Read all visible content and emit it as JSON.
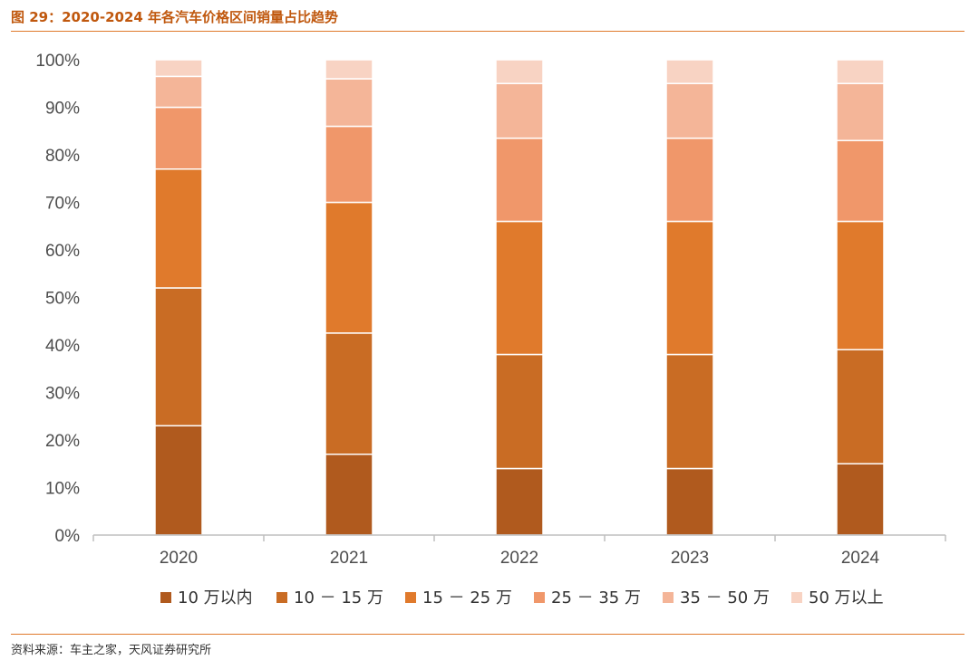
{
  "figure_title": "图 29：2020-2024 年各汽车价格区间销量占比趋势",
  "source": "资料来源：车主之家，天风证券研究所",
  "chart_data": {
    "type": "bar",
    "stacked": true,
    "categories": [
      "2020",
      "2021",
      "2022",
      "2023",
      "2024"
    ],
    "y_ticks": [
      "0%",
      "10%",
      "20%",
      "30%",
      "40%",
      "50%",
      "60%",
      "70%",
      "80%",
      "90%",
      "100%"
    ],
    "ylim": [
      0,
      100
    ],
    "grid": false,
    "legend_position": "bottom",
    "series": [
      {
        "name": "10 万以内",
        "color": "#b05a1e",
        "values": [
          23,
          17,
          14,
          14,
          15
        ]
      },
      {
        "name": "10 － 15 万",
        "color": "#c96c24",
        "values": [
          29,
          25.5,
          24,
          24,
          24
        ]
      },
      {
        "name": "15 － 25 万",
        "color": "#e07a2c",
        "values": [
          25,
          27.5,
          28,
          28,
          27
        ]
      },
      {
        "name": "25 － 35 万",
        "color": "#f0976a",
        "values": [
          13,
          16,
          17.5,
          17.5,
          17
        ]
      },
      {
        "name": "35 － 50 万",
        "color": "#f4b598",
        "values": [
          6.5,
          10,
          11.5,
          11.5,
          12
        ]
      },
      {
        "name": "50 万以上",
        "color": "#f8d3c3",
        "values": [
          3.5,
          4,
          5,
          5,
          5
        ]
      }
    ]
  }
}
